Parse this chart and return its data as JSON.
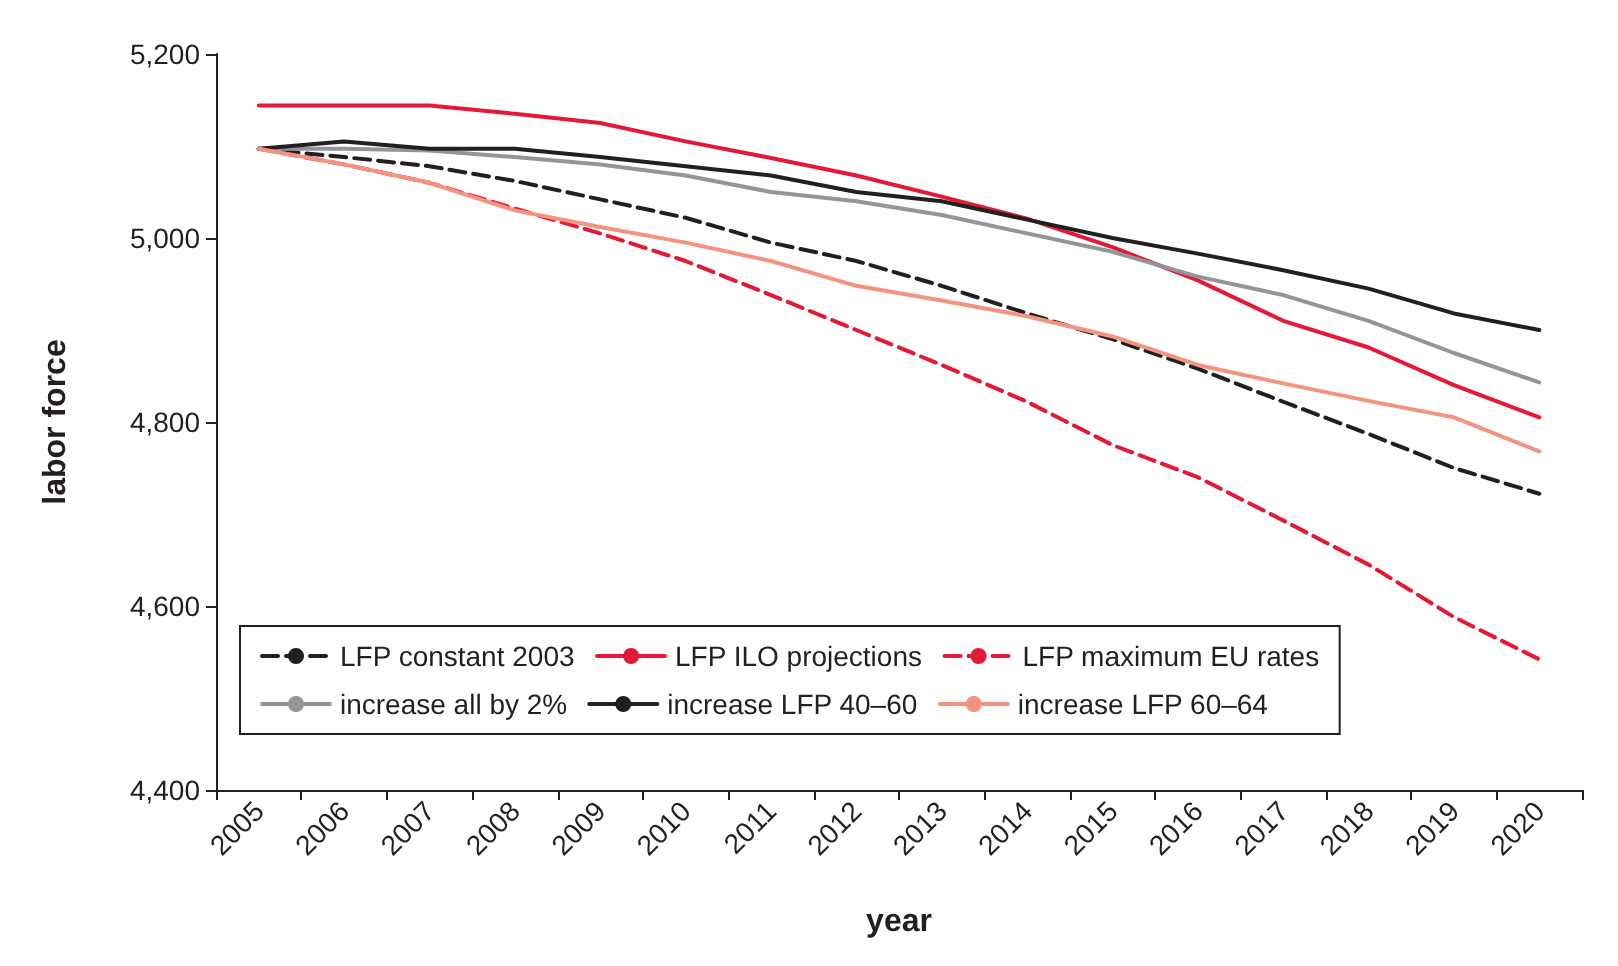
{
  "chart_data": {
    "type": "line",
    "xlabel": "year",
    "ylabel": "labor force",
    "categories": [
      "2005",
      "2006",
      "2007",
      "2008",
      "2009",
      "2010",
      "2011",
      "2012",
      "2013",
      "2014",
      "2015",
      "2016",
      "2017",
      "2018",
      "2019",
      "2020"
    ],
    "ylim": [
      4400,
      5200
    ],
    "yticks": [
      {
        "value": 4400,
        "label": "4,400"
      },
      {
        "value": 4600,
        "label": "4,600"
      },
      {
        "value": 4800,
        "label": "4,800"
      },
      {
        "value": 5000,
        "label": "5,000"
      },
      {
        "value": 5200,
        "label": "5,200"
      }
    ],
    "grid": false,
    "legend": "bottom left",
    "marker": "none",
    "series": [
      {
        "name": "LFP constant 2003",
        "color": "#231f20",
        "line_style": "dashed",
        "values": [
          5097,
          5088,
          5078,
          5062,
          5042,
          5022,
          4995,
          4975,
          4948,
          4918,
          4890,
          4858,
          4822,
          4787,
          4750,
          4722
        ]
      },
      {
        "name": "LFP ILO projections",
        "color": "#e31937",
        "line_style": "solid",
        "values": [
          5144,
          5144,
          5144,
          5135,
          5125,
          5105,
          5087,
          5068,
          5045,
          5021,
          4990,
          4954,
          4910,
          4881,
          4840,
          4805
        ]
      },
      {
        "name": "LFP maximum EU rates",
        "color": "#e31937",
        "line_style": "dashed",
        "values": [
          5097,
          5080,
          5060,
          5032,
          5005,
          4975,
          4938,
          4900,
          4862,
          4822,
          4775,
          4740,
          4693,
          4645,
          4588,
          4542
        ]
      },
      {
        "name": "increase all by 2%",
        "color": "#939598",
        "line_style": "solid",
        "values": [
          5097,
          5097,
          5095,
          5088,
          5080,
          5068,
          5050,
          5040,
          5025,
          5005,
          4985,
          4958,
          4938,
          4910,
          4875,
          4843
        ]
      },
      {
        "name": "increase LFP 40–60",
        "color": "#231f20",
        "line_style": "solid",
        "values": [
          5097,
          5105,
          5097,
          5097,
          5088,
          5078,
          5068,
          5050,
          5040,
          5020,
          5000,
          4983,
          4965,
          4945,
          4918,
          4900
        ]
      },
      {
        "name": "increase LFP 60–64",
        "color": "#f4937f",
        "line_style": "solid",
        "values": [
          5097,
          5080,
          5060,
          5030,
          5012,
          4995,
          4975,
          4948,
          4932,
          4915,
          4893,
          4862,
          4842,
          4823,
          4805,
          4768
        ]
      }
    ]
  }
}
